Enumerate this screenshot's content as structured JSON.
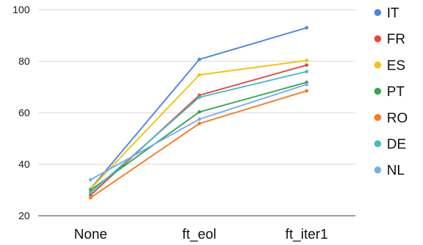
{
  "chart_data": {
    "type": "line",
    "categories": [
      "None",
      "ft_eol",
      "ft_iter1"
    ],
    "ylim": [
      20,
      100
    ],
    "yticks": [
      20,
      40,
      60,
      80,
      100
    ],
    "grid": "horizontal",
    "legend_position": "right",
    "series": [
      {
        "name": "IT",
        "color": "#4a86e8",
        "values": [
          30.5,
          80.7,
          93.0
        ]
      },
      {
        "name": "FR",
        "color": "#e8453c",
        "values": [
          28.0,
          66.8,
          78.5
        ]
      },
      {
        "name": "ES",
        "color": "#f4c20d",
        "values": [
          30.5,
          74.7,
          80.3
        ]
      },
      {
        "name": "PT",
        "color": "#34a853",
        "values": [
          30.0,
          60.3,
          71.8
        ]
      },
      {
        "name": "RO",
        "color": "#f57c1f",
        "values": [
          27.0,
          55.8,
          68.5
        ]
      },
      {
        "name": "DE",
        "color": "#46bdc6",
        "values": [
          29.0,
          66.0,
          76.0
        ]
      },
      {
        "name": "NL",
        "color": "#7baaf7",
        "values": [
          34.0,
          57.5,
          71.0
        ]
      }
    ]
  }
}
